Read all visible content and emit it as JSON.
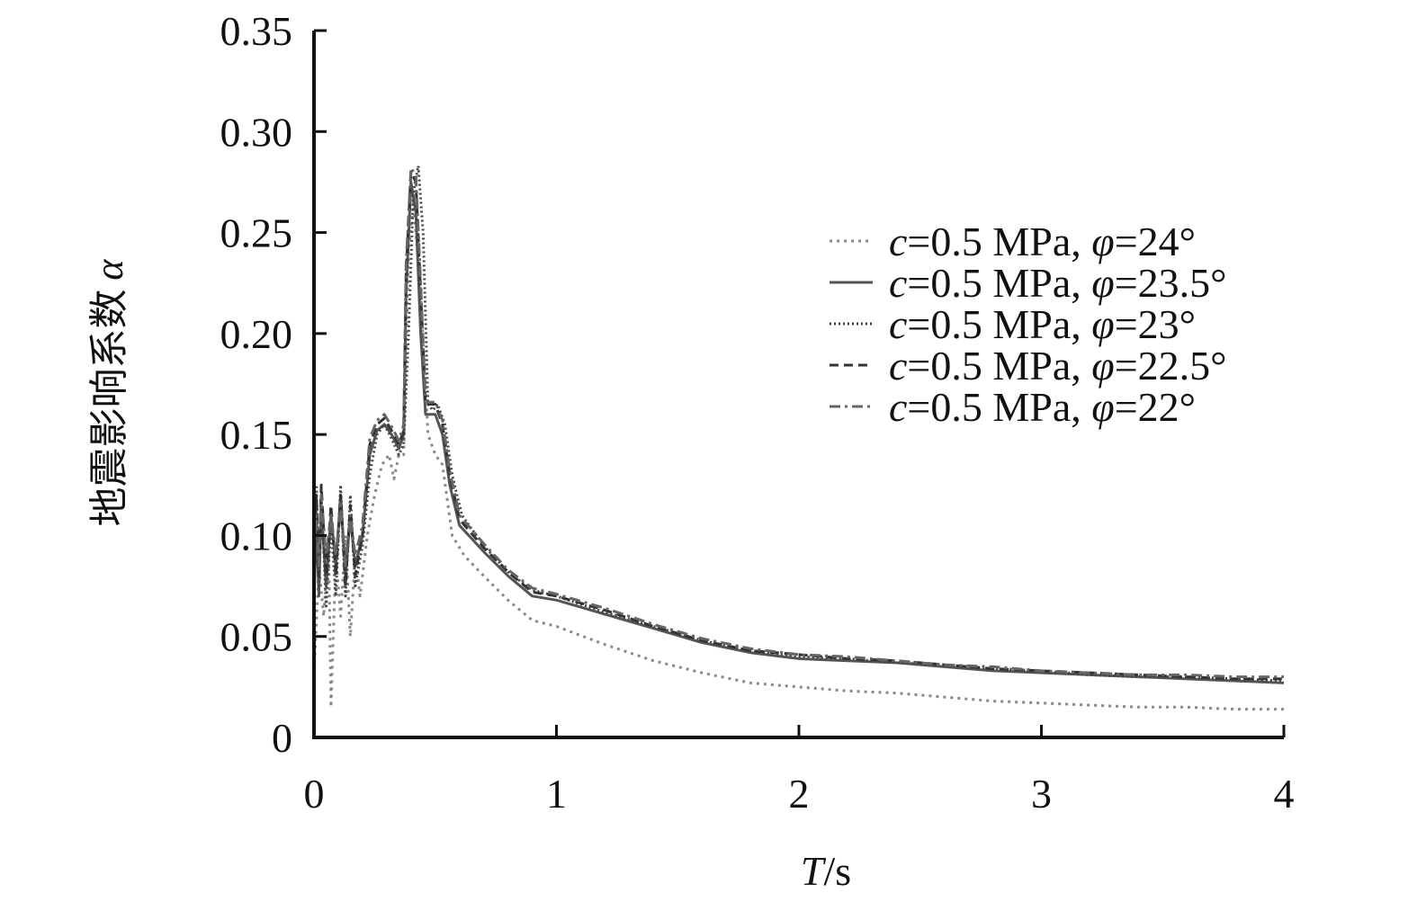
{
  "chart_data": {
    "type": "line",
    "title": "",
    "xlabel": "T/s",
    "ylabel": "地震影响系数 α",
    "xlabel_parts": {
      "var": "T",
      "rest": "/s"
    },
    "ylabel_parts": {
      "cjk": "地震影响系数",
      "var": "α"
    },
    "xlim": [
      0,
      4
    ],
    "ylim": [
      0,
      0.35
    ],
    "x_ticks": [
      0,
      1,
      2,
      3,
      4
    ],
    "x_tick_labels": [
      "0",
      "1",
      "2",
      "3",
      "4"
    ],
    "y_ticks": [
      0,
      0.05,
      0.1,
      0.15,
      0.2,
      0.25,
      0.3,
      0.35
    ],
    "y_tick_labels": [
      "0",
      "0.05",
      "0.10",
      "0.15",
      "0.20",
      "0.25",
      "0.30",
      "0.35"
    ],
    "grid": false,
    "legend_position": "upper-right",
    "series": [
      {
        "name": "c=0.5 MPa, φ=24°",
        "name_parts": {
          "a": "c",
          "b": "=0.5 MPa, ",
          "c": "φ",
          "d": "=24°"
        },
        "style": "dotted",
        "color": "#8a8a8a",
        "points": [
          [
            0,
            0.03
          ],
          [
            0.02,
            0.085
          ],
          [
            0.04,
            0.06
          ],
          [
            0.06,
            0.1
          ],
          [
            0.07,
            0.015
          ],
          [
            0.09,
            0.09
          ],
          [
            0.11,
            0.06
          ],
          [
            0.13,
            0.1
          ],
          [
            0.15,
            0.05
          ],
          [
            0.17,
            0.09
          ],
          [
            0.19,
            0.07
          ],
          [
            0.22,
            0.1
          ],
          [
            0.25,
            0.12
          ],
          [
            0.28,
            0.135
          ],
          [
            0.31,
            0.14
          ],
          [
            0.33,
            0.128
          ],
          [
            0.35,
            0.14
          ],
          [
            0.37,
            0.14
          ],
          [
            0.39,
            0.24
          ],
          [
            0.41,
            0.265
          ],
          [
            0.44,
            0.22
          ],
          [
            0.47,
            0.15
          ],
          [
            0.5,
            0.14
          ],
          [
            0.53,
            0.135
          ],
          [
            0.57,
            0.1
          ],
          [
            0.62,
            0.09
          ],
          [
            0.7,
            0.08
          ],
          [
            0.8,
            0.068
          ],
          [
            0.9,
            0.058
          ],
          [
            1.0,
            0.055
          ],
          [
            1.2,
            0.046
          ],
          [
            1.4,
            0.038
          ],
          [
            1.6,
            0.032
          ],
          [
            1.8,
            0.027
          ],
          [
            2.0,
            0.025
          ],
          [
            2.2,
            0.023
          ],
          [
            2.4,
            0.022
          ],
          [
            2.6,
            0.02
          ],
          [
            2.8,
            0.018
          ],
          [
            3.0,
            0.017
          ],
          [
            3.2,
            0.016
          ],
          [
            3.4,
            0.015
          ],
          [
            3.6,
            0.015
          ],
          [
            3.8,
            0.014
          ],
          [
            4.0,
            0.014
          ]
        ]
      },
      {
        "name": "c=0.5 MPa, φ=23.5°",
        "name_parts": {
          "a": "c",
          "b": "=0.5 MPa, ",
          "c": "φ",
          "d": "=23.5°"
        },
        "style": "solid",
        "color": "#555555",
        "points": [
          [
            0,
            0.065
          ],
          [
            0.01,
            0.11
          ],
          [
            0.02,
            0.07
          ],
          [
            0.03,
            0.115
          ],
          [
            0.05,
            0.075
          ],
          [
            0.07,
            0.11
          ],
          [
            0.09,
            0.085
          ],
          [
            0.11,
            0.12
          ],
          [
            0.13,
            0.08
          ],
          [
            0.15,
            0.11
          ],
          [
            0.17,
            0.085
          ],
          [
            0.2,
            0.1
          ],
          [
            0.23,
            0.14
          ],
          [
            0.26,
            0.152
          ],
          [
            0.29,
            0.155
          ],
          [
            0.32,
            0.15
          ],
          [
            0.35,
            0.143
          ],
          [
            0.37,
            0.15
          ],
          [
            0.38,
            0.22
          ],
          [
            0.4,
            0.275
          ],
          [
            0.42,
            0.26
          ],
          [
            0.44,
            0.2
          ],
          [
            0.46,
            0.16
          ],
          [
            0.48,
            0.16
          ],
          [
            0.5,
            0.16
          ],
          [
            0.53,
            0.15
          ],
          [
            0.56,
            0.125
          ],
          [
            0.6,
            0.105
          ],
          [
            0.7,
            0.092
          ],
          [
            0.8,
            0.08
          ],
          [
            0.9,
            0.07
          ],
          [
            1.0,
            0.068
          ],
          [
            1.2,
            0.061
          ],
          [
            1.4,
            0.054
          ],
          [
            1.6,
            0.047
          ],
          [
            1.8,
            0.042
          ],
          [
            2.0,
            0.039
          ],
          [
            2.2,
            0.038
          ],
          [
            2.4,
            0.037
          ],
          [
            2.6,
            0.035
          ],
          [
            2.8,
            0.033
          ],
          [
            3.0,
            0.032
          ],
          [
            3.2,
            0.031
          ],
          [
            3.4,
            0.03
          ],
          [
            3.6,
            0.029
          ],
          [
            3.8,
            0.028
          ],
          [
            4.0,
            0.027
          ]
        ]
      },
      {
        "name": "c=0.5 MPa, φ=23°",
        "name_parts": {
          "a": "c",
          "b": "=0.5 MPa, ",
          "c": "φ",
          "d": "=23°"
        },
        "style": "dense-dotted",
        "color": "#444444",
        "points": [
          [
            0,
            0.07
          ],
          [
            0.01,
            0.125
          ],
          [
            0.02,
            0.075
          ],
          [
            0.03,
            0.12
          ],
          [
            0.05,
            0.065
          ],
          [
            0.07,
            0.105
          ],
          [
            0.09,
            0.07
          ],
          [
            0.11,
            0.125
          ],
          [
            0.13,
            0.07
          ],
          [
            0.15,
            0.12
          ],
          [
            0.17,
            0.075
          ],
          [
            0.2,
            0.095
          ],
          [
            0.23,
            0.13
          ],
          [
            0.26,
            0.15
          ],
          [
            0.29,
            0.155
          ],
          [
            0.32,
            0.148
          ],
          [
            0.35,
            0.14
          ],
          [
            0.37,
            0.145
          ],
          [
            0.39,
            0.2
          ],
          [
            0.41,
            0.27
          ],
          [
            0.43,
            0.283
          ],
          [
            0.45,
            0.25
          ],
          [
            0.47,
            0.165
          ],
          [
            0.49,
            0.162
          ],
          [
            0.51,
            0.165
          ],
          [
            0.54,
            0.155
          ],
          [
            0.57,
            0.13
          ],
          [
            0.61,
            0.11
          ],
          [
            0.7,
            0.095
          ],
          [
            0.8,
            0.082
          ],
          [
            0.9,
            0.073
          ],
          [
            1.0,
            0.07
          ],
          [
            1.2,
            0.062
          ],
          [
            1.4,
            0.055
          ],
          [
            1.6,
            0.048
          ],
          [
            1.8,
            0.043
          ],
          [
            2.0,
            0.04
          ],
          [
            2.2,
            0.039
          ],
          [
            2.4,
            0.037
          ],
          [
            2.6,
            0.036
          ],
          [
            2.8,
            0.034
          ],
          [
            3.0,
            0.033
          ],
          [
            3.2,
            0.031
          ],
          [
            3.4,
            0.03
          ],
          [
            3.6,
            0.03
          ],
          [
            3.8,
            0.029
          ],
          [
            4.0,
            0.028
          ]
        ]
      },
      {
        "name": "c=0.5 MPa, φ=22.5°",
        "name_parts": {
          "a": "c",
          "b": "=0.5 MPa, ",
          "c": "φ",
          "d": "=22.5°"
        },
        "style": "dashed",
        "color": "#333333",
        "points": [
          [
            0,
            0.08
          ],
          [
            0.01,
            0.12
          ],
          [
            0.02,
            0.08
          ],
          [
            0.03,
            0.125
          ],
          [
            0.05,
            0.08
          ],
          [
            0.07,
            0.115
          ],
          [
            0.09,
            0.08
          ],
          [
            0.11,
            0.12
          ],
          [
            0.13,
            0.075
          ],
          [
            0.15,
            0.115
          ],
          [
            0.17,
            0.08
          ],
          [
            0.2,
            0.1
          ],
          [
            0.23,
            0.145
          ],
          [
            0.26,
            0.155
          ],
          [
            0.29,
            0.158
          ],
          [
            0.32,
            0.152
          ],
          [
            0.35,
            0.145
          ],
          [
            0.37,
            0.152
          ],
          [
            0.38,
            0.23
          ],
          [
            0.4,
            0.28
          ],
          [
            0.42,
            0.275
          ],
          [
            0.44,
            0.22
          ],
          [
            0.46,
            0.165
          ],
          [
            0.48,
            0.165
          ],
          [
            0.5,
            0.165
          ],
          [
            0.53,
            0.155
          ],
          [
            0.56,
            0.13
          ],
          [
            0.6,
            0.108
          ],
          [
            0.7,
            0.094
          ],
          [
            0.8,
            0.082
          ],
          [
            0.9,
            0.072
          ],
          [
            1.0,
            0.07
          ],
          [
            1.2,
            0.063
          ],
          [
            1.4,
            0.055
          ],
          [
            1.6,
            0.048
          ],
          [
            1.8,
            0.043
          ],
          [
            2.0,
            0.041
          ],
          [
            2.2,
            0.039
          ],
          [
            2.4,
            0.038
          ],
          [
            2.6,
            0.036
          ],
          [
            2.8,
            0.034
          ],
          [
            3.0,
            0.033
          ],
          [
            3.2,
            0.032
          ],
          [
            3.4,
            0.031
          ],
          [
            3.6,
            0.03
          ],
          [
            3.8,
            0.029
          ],
          [
            4.0,
            0.029
          ]
        ]
      },
      {
        "name": "c=0.5 MPa, φ=22°",
        "name_parts": {
          "a": "c",
          "b": "=0.5 MPa, ",
          "c": "φ",
          "d": "=22°"
        },
        "style": "dash-dot",
        "color": "#666666",
        "points": [
          [
            0,
            0.09
          ],
          [
            0.01,
            0.11
          ],
          [
            0.02,
            0.085
          ],
          [
            0.03,
            0.12
          ],
          [
            0.05,
            0.09
          ],
          [
            0.07,
            0.11
          ],
          [
            0.09,
            0.09
          ],
          [
            0.11,
            0.115
          ],
          [
            0.13,
            0.085
          ],
          [
            0.15,
            0.11
          ],
          [
            0.17,
            0.09
          ],
          [
            0.2,
            0.105
          ],
          [
            0.23,
            0.148
          ],
          [
            0.26,
            0.157
          ],
          [
            0.29,
            0.16
          ],
          [
            0.32,
            0.154
          ],
          [
            0.35,
            0.147
          ],
          [
            0.37,
            0.155
          ],
          [
            0.38,
            0.235
          ],
          [
            0.4,
            0.282
          ],
          [
            0.42,
            0.278
          ],
          [
            0.44,
            0.225
          ],
          [
            0.46,
            0.166
          ],
          [
            0.48,
            0.166
          ],
          [
            0.5,
            0.166
          ],
          [
            0.53,
            0.157
          ],
          [
            0.56,
            0.132
          ],
          [
            0.6,
            0.11
          ],
          [
            0.7,
            0.096
          ],
          [
            0.8,
            0.083
          ],
          [
            0.9,
            0.074
          ],
          [
            1.0,
            0.071
          ],
          [
            1.2,
            0.064
          ],
          [
            1.4,
            0.056
          ],
          [
            1.6,
            0.049
          ],
          [
            1.8,
            0.044
          ],
          [
            2.0,
            0.041
          ],
          [
            2.2,
            0.04
          ],
          [
            2.4,
            0.038
          ],
          [
            2.6,
            0.036
          ],
          [
            2.8,
            0.035
          ],
          [
            3.0,
            0.033
          ],
          [
            3.2,
            0.032
          ],
          [
            3.4,
            0.031
          ],
          [
            3.6,
            0.031
          ],
          [
            3.8,
            0.03
          ],
          [
            4.0,
            0.03
          ]
        ]
      }
    ]
  }
}
